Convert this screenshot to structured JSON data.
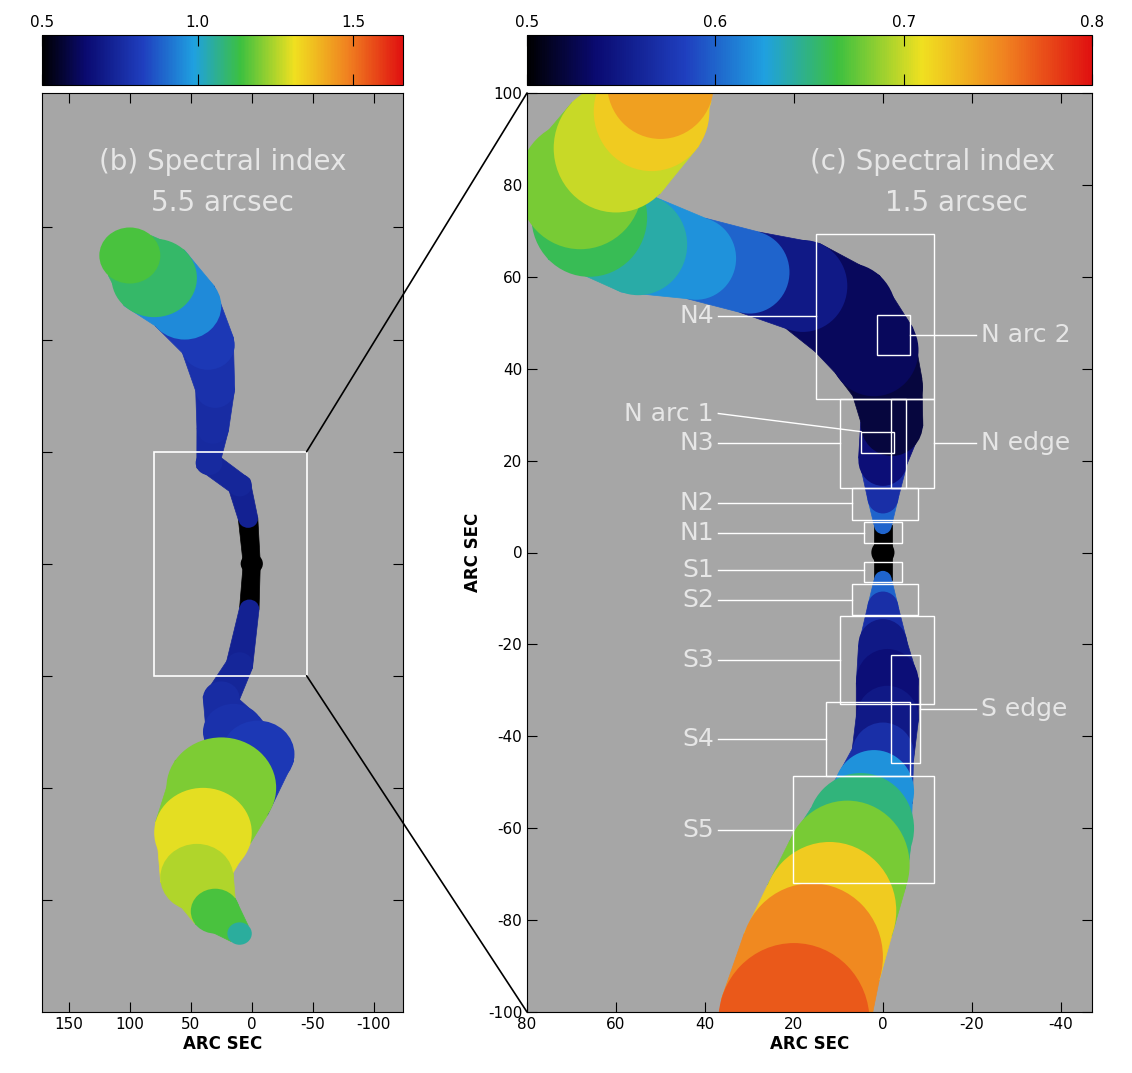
{
  "chart_data": [
    {
      "type": "heatmap",
      "title": "(b) Spectral index",
      "subtitle": "5.5 arcsec",
      "xlabel": "ARC SEC",
      "xlim": [
        172,
        -124
      ],
      "ylim": [
        -400,
        420
      ],
      "xticks": [
        150,
        100,
        50,
        0,
        -50,
        -100
      ],
      "yticks": [
        -300,
        -200,
        -100,
        0,
        100,
        200,
        300
      ],
      "tick_labels": "x",
      "colorbar": {
        "range": [
          0.5,
          1.66
        ],
        "ticks": [
          0.5,
          1.0,
          1.5
        ]
      },
      "core": {
        "x": 0,
        "y": 0,
        "value": 0.5
      },
      "ridges": [
        {
          "x": [
            0,
            3,
            10,
            35,
            32,
            30,
            36,
            55,
            80,
            100
          ],
          "y": [
            0,
            40,
            70,
            90,
            120,
            155,
            195,
            230,
            255,
            275
          ],
          "width": [
            14,
            16,
            20,
            22,
            26,
            32,
            44,
            60,
            70,
            50
          ],
          "values": [
            0.5,
            0.72,
            0.74,
            0.75,
            0.76,
            0.78,
            0.8,
            0.95,
            1.1,
            1.15
          ]
        },
        {
          "x": [
            0,
            2,
            10,
            25,
            15,
            -5,
            25,
            40,
            45,
            30,
            10
          ],
          "y": [
            0,
            -40,
            -90,
            -120,
            -150,
            -170,
            -200,
            -240,
            -280,
            -310,
            -330
          ],
          "width": [
            14,
            16,
            22,
            30,
            50,
            60,
            90,
            80,
            60,
            40,
            20
          ],
          "values": [
            0.5,
            0.72,
            0.74,
            0.76,
            0.78,
            0.8,
            1.2,
            1.3,
            1.25,
            1.15,
            1.05
          ]
        }
      ],
      "zoom_box": {
        "x": [
          80,
          -45
        ],
        "y": [
          -100,
          100
        ]
      }
    },
    {
      "type": "heatmap",
      "title": "(c) Spectral index",
      "subtitle": "1.5 arcsec",
      "xlabel": "ARC SEC",
      "ylabel": "ARC SEC",
      "xlim": [
        80,
        -47
      ],
      "ylim": [
        -100,
        100
      ],
      "xticks": [
        80,
        60,
        40,
        20,
        0,
        -20,
        -40
      ],
      "yticks": [
        -100,
        -80,
        -60,
        -40,
        -20,
        0,
        20,
        40,
        60,
        80,
        100
      ],
      "colorbar": {
        "range": [
          0.5,
          0.8
        ],
        "ticks": [
          0.5,
          0.6,
          0.7,
          0.8
        ]
      },
      "core": {
        "x": 0,
        "y": 0,
        "value": 0.5
      },
      "ridges": [
        {
          "x": [
            0,
            0,
            0,
            0,
            -2,
            -1,
            2,
            8,
            18,
            30,
            42,
            55,
            66,
            68,
            60,
            52,
            50
          ],
          "y": [
            0,
            6,
            12,
            20,
            28,
            36,
            44,
            52,
            58,
            61,
            64,
            67,
            73,
            80,
            88,
            96,
            102
          ],
          "width": [
            4,
            4,
            7,
            11,
            14,
            16,
            20,
            22,
            20,
            18,
            18,
            22,
            26,
            28,
            28,
            26,
            24
          ],
          "values": [
            0.5,
            0.6,
            0.57,
            0.54,
            0.52,
            0.52,
            0.53,
            0.53,
            0.55,
            0.6,
            0.62,
            0.64,
            0.66,
            0.68,
            0.7,
            0.72,
            0.74
          ]
        },
        {
          "x": [
            0,
            0,
            0,
            0,
            -1,
            -1,
            0,
            2,
            5,
            8,
            12,
            16,
            20
          ],
          "y": [
            0,
            -6,
            -12,
            -20,
            -28,
            -36,
            -44,
            -52,
            -60,
            -68,
            -78,
            -88,
            -102
          ],
          "width": [
            4,
            4,
            7,
            11,
            14,
            14,
            14,
            18,
            24,
            28,
            30,
            32,
            34
          ],
          "values": [
            0.5,
            0.6,
            0.57,
            0.55,
            0.54,
            0.55,
            0.57,
            0.62,
            0.65,
            0.68,
            0.72,
            0.75,
            0.77
          ]
        }
      ],
      "regions": [
        {
          "label": "N4",
          "x": [
            15,
            -11.4
          ],
          "y": [
            33.4,
            69.4
          ]
        },
        {
          "label": "N arc 2",
          "x": [
            1.3,
            -6.1
          ],
          "y": [
            43,
            51.6
          ]
        },
        {
          "label": "N arc 1",
          "x": [
            4.9,
            -2.5
          ],
          "y": [
            21.6,
            26.3
          ]
        },
        {
          "label": "N3",
          "x": [
            9.7,
            -5.1
          ],
          "y": [
            14.1,
            33.4
          ]
        },
        {
          "label": "N edge",
          "x": [
            -1.9,
            -11.4
          ],
          "y": [
            14.1,
            33.4
          ]
        },
        {
          "label": "N2",
          "x": [
            7,
            -7.8
          ],
          "y": [
            7,
            14.1
          ]
        },
        {
          "label": "N1",
          "x": [
            4.2,
            -4.2
          ],
          "y": [
            2.1,
            6.6
          ]
        },
        {
          "label": "S1",
          "x": [
            4.2,
            -4.2
          ],
          "y": [
            -6.4,
            -2.1
          ]
        },
        {
          "label": "S2",
          "x": [
            7,
            -7.8
          ],
          "y": [
            -13.7,
            -6.9
          ]
        },
        {
          "label": "S3",
          "x": [
            9.7,
            -11.4
          ],
          "y": [
            -33,
            -13.9
          ]
        },
        {
          "label": "S edge",
          "x": [
            -1.9,
            -8.3
          ],
          "y": [
            -45.8,
            -22.3
          ]
        },
        {
          "label": "S4",
          "x": [
            12.9,
            -6.1
          ],
          "y": [
            -48.6,
            -32.5
          ]
        },
        {
          "label": "S5",
          "x": [
            20.3,
            -11.4
          ],
          "y": [
            -72,
            -48.6
          ]
        }
      ]
    }
  ]
}
